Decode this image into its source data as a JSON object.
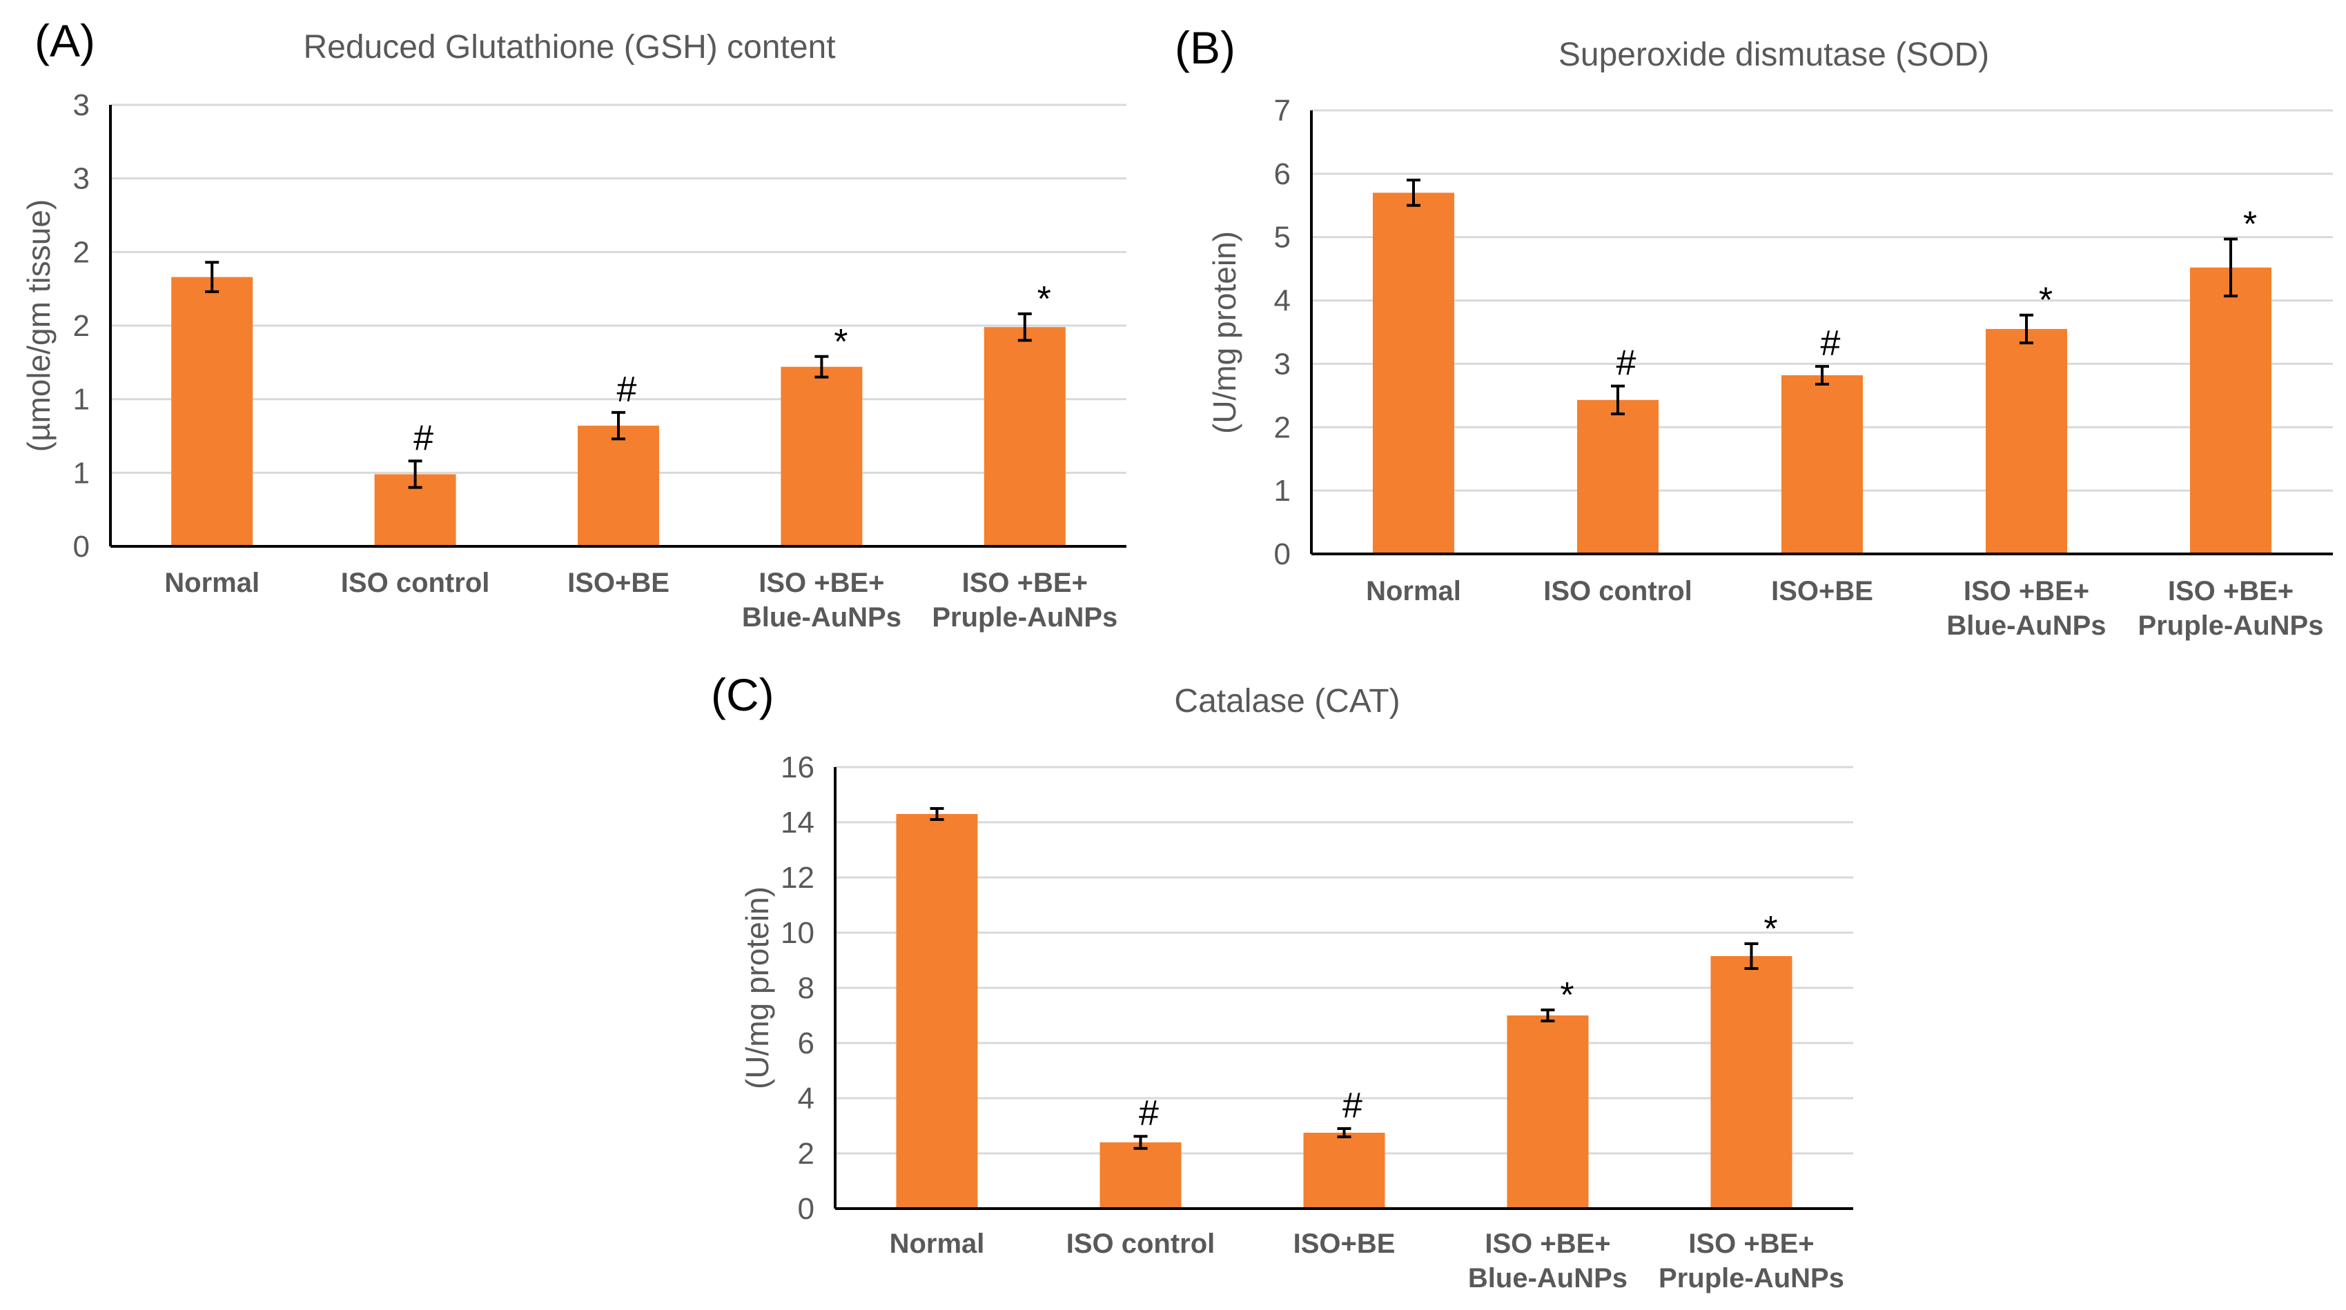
{
  "figure": {
    "background": "#ffffff",
    "bar_color": "#f47f2e"
  },
  "chart_data": [
    {
      "id": "A",
      "panel_label": "(A)",
      "type": "bar",
      "title": "Reduced Glutathione (GSH) content",
      "ylabel": "(µmole/gm tissue)",
      "xlabel": "",
      "ylim": [
        0,
        3
      ],
      "ytick_values": [
        0,
        0.5,
        1,
        1.5,
        2,
        2.5,
        3
      ],
      "ytick_labels": [
        "0",
        "1",
        "1",
        "2",
        "2",
        "3",
        "3"
      ],
      "categories": [
        [
          "Normal"
        ],
        [
          "ISO control"
        ],
        [
          "ISO+BE"
        ],
        [
          "ISO +BE+",
          "Blue-AuNPs"
        ],
        [
          "ISO +BE+",
          "Pruple-AuNPs"
        ]
      ],
      "values": [
        1.83,
        0.49,
        0.82,
        1.22,
        1.49
      ],
      "errors": [
        0.1,
        0.09,
        0.09,
        0.07,
        0.09
      ],
      "marks": [
        "",
        "#",
        "#",
        "*",
        "*"
      ],
      "grid": true
    },
    {
      "id": "B",
      "panel_label": "(B)",
      "type": "bar",
      "title": "Superoxide dismutase (SOD)",
      "ylabel": "(U/mg protein)",
      "xlabel": "",
      "ylim": [
        0,
        7
      ],
      "ytick_values": [
        0,
        1,
        2,
        3,
        4,
        5,
        6,
        7
      ],
      "ytick_labels": [
        "0",
        "1",
        "2",
        "3",
        "4",
        "5",
        "6",
        "7"
      ],
      "categories": [
        [
          "Normal"
        ],
        [
          "ISO control"
        ],
        [
          "ISO+BE"
        ],
        [
          "ISO +BE+",
          "Blue-AuNPs"
        ],
        [
          "ISO +BE+",
          "Pruple-AuNPs"
        ]
      ],
      "values": [
        5.7,
        2.43,
        2.82,
        3.55,
        4.52
      ],
      "errors": [
        0.2,
        0.22,
        0.14,
        0.22,
        0.45
      ],
      "marks": [
        "",
        "#",
        "#",
        "*",
        "*"
      ],
      "grid": true
    },
    {
      "id": "C",
      "panel_label": "(C)",
      "type": "bar",
      "title": "Catalase (CAT)",
      "ylabel": "(U/mg protein)",
      "xlabel": "",
      "ylim": [
        0,
        16
      ],
      "ytick_values": [
        0,
        2,
        4,
        6,
        8,
        10,
        12,
        14,
        16
      ],
      "ytick_labels": [
        "0",
        "2",
        "4",
        "6",
        "8",
        "10",
        "12",
        "14",
        "16"
      ],
      "categories": [
        [
          "Normal"
        ],
        [
          "ISO control"
        ],
        [
          "ISO+BE"
        ],
        [
          "ISO +BE+",
          "Blue-AuNPs"
        ],
        [
          "ISO +BE+",
          "Pruple-AuNPs"
        ]
      ],
      "values": [
        14.3,
        2.4,
        2.75,
        7.0,
        9.15
      ],
      "errors": [
        0.2,
        0.22,
        0.15,
        0.2,
        0.45
      ],
      "marks": [
        "",
        "#",
        "#",
        "*",
        "*"
      ],
      "grid": true
    }
  ]
}
